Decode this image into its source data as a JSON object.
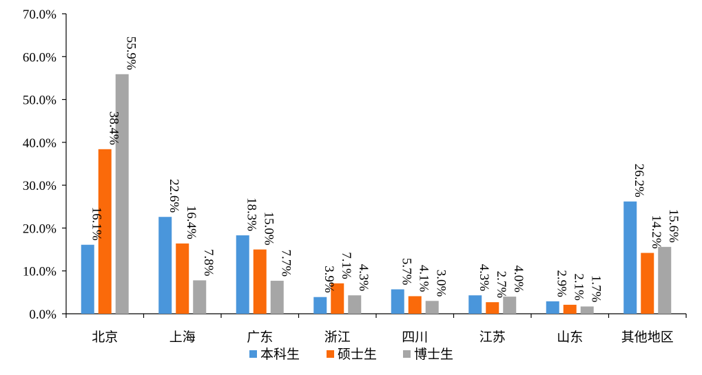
{
  "chart_data": {
    "type": "bar",
    "categories": [
      "北京",
      "上海",
      "广东",
      "浙江",
      "四川",
      "江苏",
      "山东",
      "其他地区"
    ],
    "series": [
      {
        "name": "本科生",
        "values": [
          16.1,
          22.6,
          18.3,
          3.9,
          5.7,
          4.3,
          2.9,
          26.2
        ],
        "labels": [
          "16.1%",
          "22.6%",
          "18.3%",
          "3.9%",
          "5.7%",
          "4.3%",
          "2.9%",
          "26.2%"
        ],
        "color": "#4A96DB"
      },
      {
        "name": "硕士生",
        "values": [
          38.4,
          16.4,
          15.0,
          7.1,
          4.1,
          2.7,
          2.1,
          14.2
        ],
        "labels": [
          "38.4%",
          "16.4%",
          "15.0%",
          "7.1%",
          "4.1%",
          "2.7%",
          "2.1%",
          "14.2%"
        ],
        "color": "#FA6A0A"
      },
      {
        "name": "博士生",
        "values": [
          55.9,
          7.8,
          7.7,
          4.3,
          3.0,
          4.0,
          1.7,
          15.6
        ],
        "labels": [
          "55.9%",
          "7.8%",
          "7.7%",
          "4.3%",
          "3.0%",
          "4.0%",
          "1.7%",
          "15.6%"
        ],
        "color": "#A6A6A6"
      }
    ],
    "yticks": [
      "0.0%",
      "10.0%",
      "20.0%",
      "30.0%",
      "40.0%",
      "50.0%",
      "60.0%",
      "70.0%"
    ],
    "ylim": [
      0,
      70
    ],
    "grid": false,
    "legend_position": "bottom"
  }
}
